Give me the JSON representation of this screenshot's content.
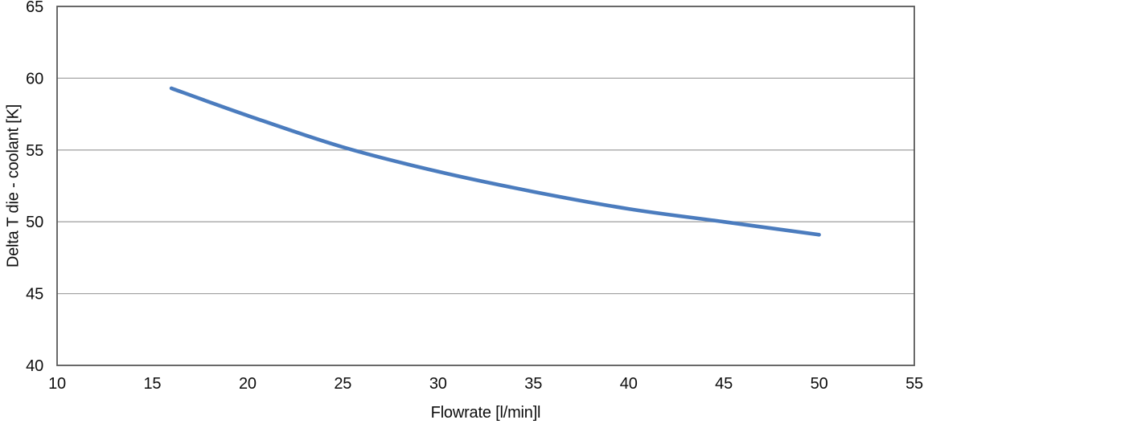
{
  "page": {
    "background_color": "#ffffff"
  },
  "chart_data": {
    "type": "line",
    "title": "",
    "xlabel": "Flowrate [l/min]l",
    "ylabel": "Delta T die - coolant [K]",
    "series": [
      {
        "name": "Delta T die - coolant",
        "x": [
          16,
          20,
          25,
          30,
          35,
          40,
          45,
          50
        ],
        "y": [
          59.3,
          57.4,
          55.2,
          53.5,
          52.1,
          50.9,
          50.0,
          49.1
        ],
        "color": "#4b7cbe",
        "stroke_width": 4.6
      }
    ],
    "xlim": [
      10,
      55
    ],
    "ylim": [
      40,
      65
    ],
    "x_ticks": [
      10,
      15,
      20,
      25,
      30,
      35,
      40,
      45,
      50,
      55
    ],
    "y_ticks": [
      40,
      45,
      50,
      55,
      60,
      65
    ],
    "grid": "horizontal-only",
    "legend_position": "none",
    "plot_border_color": "#595959",
    "gridline_color": "#a6a6a6",
    "tick_label_color": "#0d0d0d"
  }
}
